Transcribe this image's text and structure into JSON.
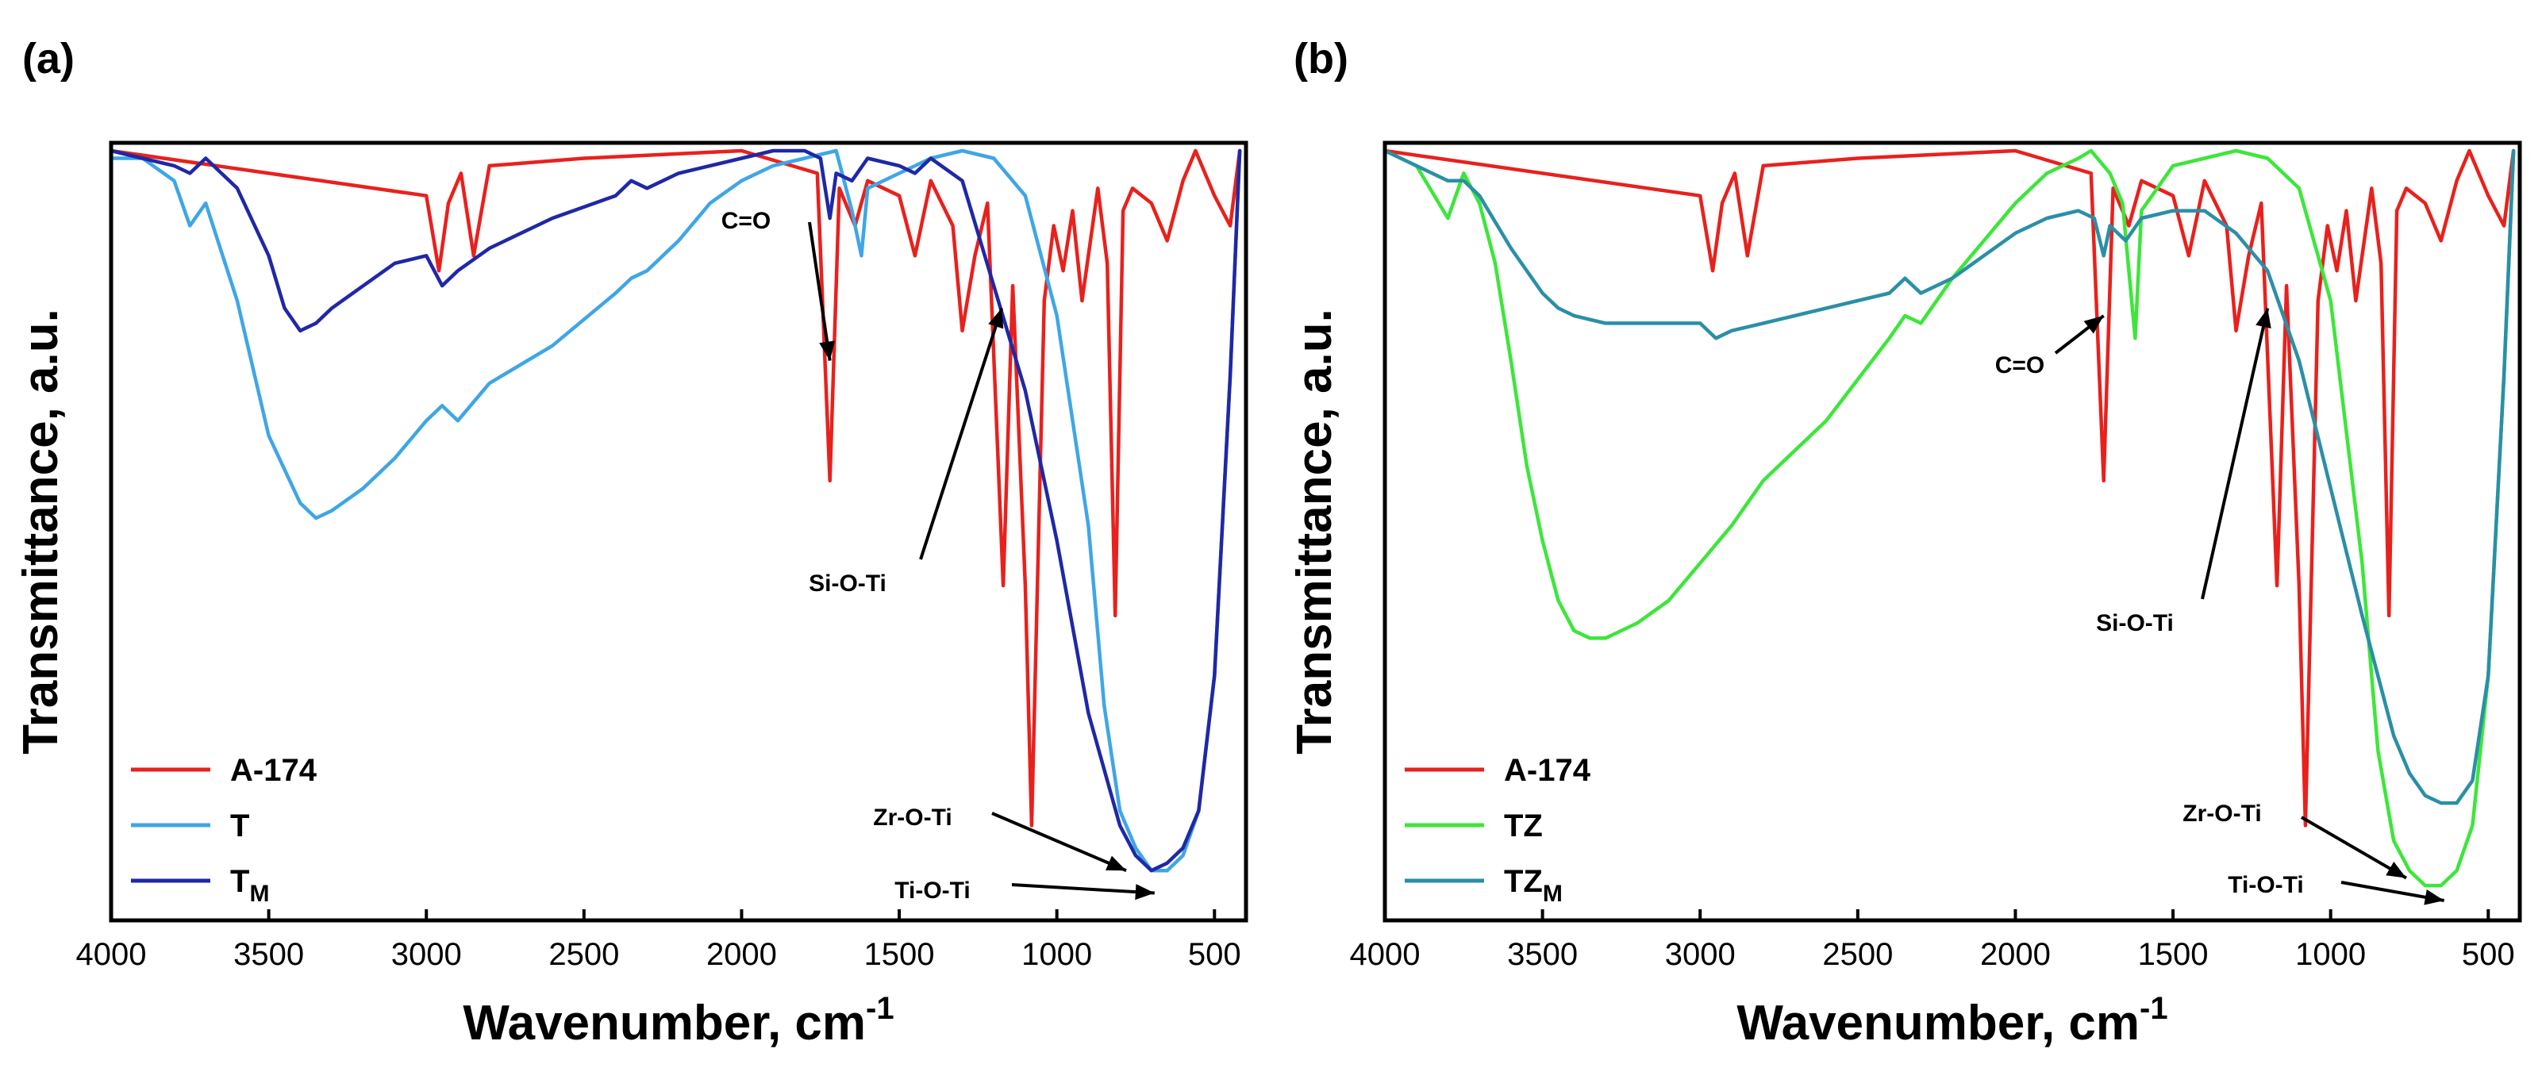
{
  "chart_data": [
    {
      "type": "line",
      "panel_label": "(a)",
      "xlabel": "Wavenumber, cm",
      "xlabel_sup": "-1",
      "ylabel": "Transmittance, a.u.",
      "xlim": [
        4000,
        400
      ],
      "ylim": [
        0,
        100
      ],
      "x_ticks": [
        "4000",
        "3500",
        "3000",
        "2500",
        "2000",
        "1500",
        "1000",
        "500"
      ],
      "legend_position": "bottom-left",
      "series": [
        {
          "name": "A-174",
          "sub": "",
          "color": "#e8211d",
          "x": [
            4000,
            3000,
            2960,
            2930,
            2890,
            2850,
            2800,
            2500,
            2000,
            1760,
            1720,
            1690,
            1640,
            1600,
            1500,
            1450,
            1400,
            1330,
            1300,
            1260,
            1220,
            1170,
            1140,
            1100,
            1080,
            1040,
            1010,
            980,
            950,
            920,
            870,
            840,
            815,
            790,
            760,
            700,
            650,
            600,
            560,
            500,
            450,
            420
          ],
          "y": [
            100,
            94,
            84,
            93,
            97,
            86,
            98,
            99,
            100,
            97,
            56,
            95,
            90,
            96,
            94,
            86,
            96,
            90,
            76,
            86,
            93,
            42,
            82,
            42,
            10,
            80,
            90,
            84,
            92,
            80,
            95,
            85,
            38,
            92,
            95,
            93,
            88,
            96,
            100,
            94,
            90,
            100
          ]
        },
        {
          "name": "T",
          "sub": "",
          "color": "#3fa6e6",
          "x": [
            4000,
            3900,
            3800,
            3750,
            3700,
            3600,
            3500,
            3400,
            3350,
            3300,
            3200,
            3100,
            3000,
            2950,
            2900,
            2800,
            2600,
            2400,
            2350,
            2300,
            2200,
            2100,
            2000,
            1900,
            1800,
            1700,
            1650,
            1620,
            1600,
            1500,
            1400,
            1300,
            1200,
            1100,
            1000,
            900,
            850,
            800,
            750,
            700,
            650,
            600,
            550,
            500,
            450,
            420
          ],
          "y": [
            99,
            99,
            96,
            90,
            93,
            80,
            62,
            53,
            51,
            52,
            55,
            59,
            64,
            66,
            64,
            69,
            74,
            81,
            83,
            84,
            88,
            93,
            96,
            98,
            99,
            100,
            92,
            86,
            95,
            97,
            99,
            100,
            99,
            94,
            78,
            50,
            26,
            12,
            7,
            4,
            4,
            6,
            12,
            30,
            70,
            100
          ]
        },
        {
          "name": "T",
          "sub": "M",
          "color": "#1f28a6",
          "x": [
            4000,
            3900,
            3800,
            3750,
            3700,
            3600,
            3500,
            3450,
            3400,
            3350,
            3300,
            3200,
            3100,
            3000,
            2950,
            2900,
            2800,
            2600,
            2400,
            2350,
            2300,
            2200,
            2000,
            1900,
            1800,
            1750,
            1720,
            1700,
            1650,
            1600,
            1500,
            1450,
            1400,
            1300,
            1200,
            1100,
            1000,
            900,
            800,
            750,
            700,
            650,
            600,
            550,
            500,
            450,
            420
          ],
          "y": [
            100,
            99,
            98,
            97,
            99,
            95,
            86,
            79,
            76,
            77,
            79,
            82,
            85,
            86,
            82,
            84,
            87,
            91,
            94,
            96,
            95,
            97,
            99,
            100,
            100,
            99,
            91,
            97,
            96,
            99,
            98,
            97,
            99,
            96,
            82,
            68,
            48,
            25,
            10,
            6,
            4,
            5,
            7,
            12,
            30,
            70,
            100
          ]
        }
      ],
      "annotations": [
        {
          "text": "C=O",
          "x": 1720
        },
        {
          "text": "Si-O-Ti",
          "x": 1175
        },
        {
          "text": "Zr-O-Ti",
          "x": 780
        },
        {
          "text": "Ti-O-Ti",
          "x": 690
        }
      ]
    },
    {
      "type": "line",
      "panel_label": "(b)",
      "xlabel": "Wavenumber, cm",
      "xlabel_sup": "-1",
      "ylabel": "Transmittance, a.u.",
      "xlim": [
        4000,
        400
      ],
      "ylim": [
        0,
        100
      ],
      "x_ticks": [
        "4000",
        "3500",
        "3000",
        "2500",
        "2000",
        "1500",
        "1000",
        "500"
      ],
      "legend_position": "bottom-left",
      "series": [
        {
          "name": "A-174",
          "sub": "",
          "color": "#e8211d",
          "x": [
            4000,
            3000,
            2960,
            2930,
            2890,
            2850,
            2800,
            2500,
            2000,
            1760,
            1720,
            1690,
            1640,
            1600,
            1500,
            1450,
            1400,
            1330,
            1300,
            1260,
            1220,
            1170,
            1140,
            1100,
            1080,
            1040,
            1010,
            980,
            950,
            920,
            870,
            840,
            815,
            790,
            760,
            700,
            650,
            600,
            560,
            500,
            450,
            420
          ],
          "y": [
            100,
            94,
            84,
            93,
            97,
            86,
            98,
            99,
            100,
            97,
            56,
            95,
            90,
            96,
            94,
            86,
            96,
            90,
            76,
            86,
            93,
            42,
            82,
            42,
            10,
            80,
            90,
            84,
            92,
            80,
            95,
            85,
            38,
            92,
            95,
            93,
            88,
            96,
            100,
            94,
            90,
            100
          ]
        },
        {
          "name": "TZ",
          "sub": "",
          "color": "#3de63a",
          "x": [
            4000,
            3900,
            3800,
            3750,
            3700,
            3650,
            3600,
            3550,
            3500,
            3450,
            3400,
            3350,
            3300,
            3200,
            3100,
            3000,
            2900,
            2800,
            2600,
            2400,
            2350,
            2300,
            2200,
            2000,
            1900,
            1800,
            1760,
            1700,
            1660,
            1620,
            1600,
            1500,
            1400,
            1300,
            1200,
            1100,
            1000,
            900,
            850,
            800,
            750,
            700,
            650,
            600,
            550,
            500,
            450,
            420
          ],
          "y": [
            100,
            98,
            91,
            97,
            93,
            85,
            72,
            58,
            48,
            40,
            36,
            35,
            35,
            37,
            40,
            45,
            50,
            56,
            64,
            75,
            78,
            77,
            83,
            93,
            97,
            99,
            100,
            97,
            93,
            75,
            92,
            98,
            99,
            100,
            99,
            95,
            80,
            45,
            20,
            8,
            4,
            2,
            2,
            4,
            10,
            30,
            70,
            100
          ]
        },
        {
          "name": "TZ",
          "sub": "M",
          "color": "#2a8fa6",
          "x": [
            4000,
            3900,
            3800,
            3750,
            3700,
            3600,
            3500,
            3450,
            3400,
            3300,
            3200,
            3100,
            3000,
            2950,
            2900,
            2800,
            2600,
            2400,
            2350,
            2300,
            2200,
            2000,
            1900,
            1800,
            1750,
            1720,
            1700,
            1650,
            1600,
            1500,
            1400,
            1300,
            1200,
            1100,
            1000,
            900,
            800,
            750,
            700,
            650,
            600,
            550,
            500,
            450,
            420
          ],
          "y": [
            100,
            98,
            96,
            96,
            94,
            87,
            81,
            79,
            78,
            77,
            77,
            77,
            77,
            75,
            76,
            77,
            79,
            81,
            83,
            81,
            83,
            89,
            91,
            92,
            91,
            86,
            90,
            88,
            91,
            92,
            92,
            89,
            84,
            72,
            55,
            38,
            22,
            17,
            14,
            13,
            13,
            16,
            30,
            70,
            100
          ]
        }
      ],
      "annotations": [
        {
          "text": "C=O",
          "x": 1720
        },
        {
          "text": "Si-O-Ti",
          "x": 1200
        },
        {
          "text": "Zr-O-Ti",
          "x": 760
        },
        {
          "text": "Ti-O-Ti",
          "x": 640
        }
      ]
    }
  ]
}
